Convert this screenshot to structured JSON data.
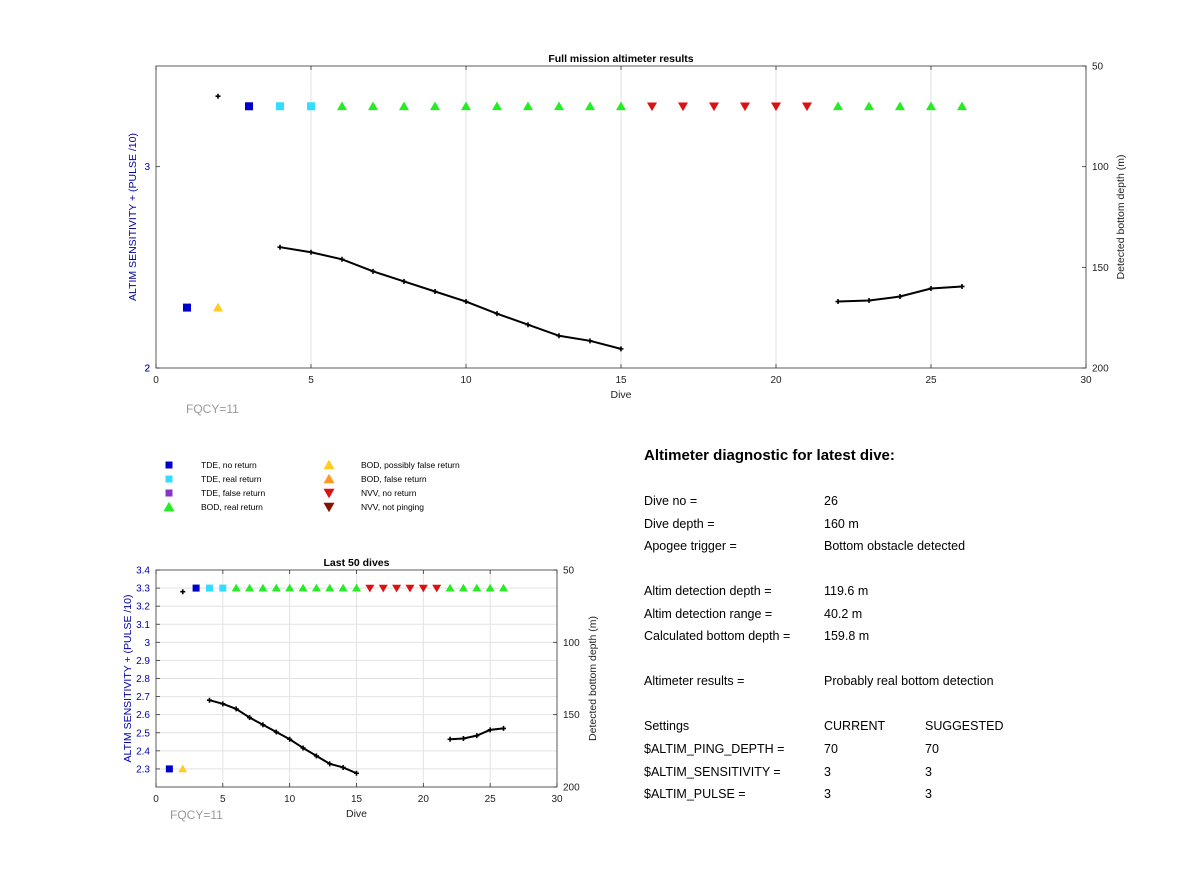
{
  "colors": {
    "tde_no": "#0000cc",
    "tde_real": "#33ddff",
    "tde_false": "#8833cc",
    "bod_real": "#22ee22",
    "bod_possible": "#ffcc22",
    "bod_false": "#ff9922",
    "nvv_no": "#dd1111",
    "nvv_notping": "#881100",
    "depth_line": "#000000",
    "left_axis": "#0000aa",
    "fqcy": "#999999"
  },
  "legend": [
    {
      "label": "TDE, no return",
      "marker": "square",
      "color": "#0000cc"
    },
    {
      "label": "TDE, real return",
      "marker": "square",
      "color": "#33ddff"
    },
    {
      "label": "TDE, false return",
      "marker": "square",
      "color": "#8833cc"
    },
    {
      "label": "BOD, real return",
      "marker": "triangle-up",
      "color": "#22ee22"
    },
    {
      "label": "BOD, possibly false return",
      "marker": "triangle-up",
      "color": "#ffcc22"
    },
    {
      "label": "BOD, false return",
      "marker": "triangle-up",
      "color": "#ff9922"
    },
    {
      "label": "NVV, no return",
      "marker": "triangle-down",
      "color": "#dd1111"
    },
    {
      "label": "NVV, not pinging",
      "marker": "triangle-down",
      "color": "#881100"
    }
  ],
  "chart_data": [
    {
      "type": "scatter",
      "title": "Full mission altimeter results",
      "xlabel": "Dive",
      "ylabel": "ALTIM SENSITIVITY + (PULSE /10)",
      "y2label": "Detected bottom depth (m)",
      "xlim": [
        0,
        30
      ],
      "ylim": [
        2,
        3.5
      ],
      "y2lim": [
        50,
        200
      ],
      "y2_reversed": true,
      "xticks": [
        0,
        5,
        10,
        15,
        20,
        25,
        30
      ],
      "yticks": [
        2,
        3
      ],
      "y2ticks": [
        50,
        100,
        150,
        200
      ],
      "grid_x": true,
      "grid_y": false,
      "annotation": "FQCY=11",
      "series": [
        {
          "marker": "square",
          "color": "#0000cc",
          "points": [
            [
              1,
              2.3
            ],
            [
              3,
              3.3
            ]
          ]
        },
        {
          "marker": "square",
          "color": "#33ddff",
          "points": [
            [
              4,
              3.3
            ],
            [
              5,
              3.3
            ]
          ]
        },
        {
          "marker": "triangle-up",
          "color": "#ffcc22",
          "points": [
            [
              2,
              2.3
            ]
          ]
        },
        {
          "marker": "triangle-up",
          "color": "#22ee22",
          "points": [
            [
              6,
              3.3
            ],
            [
              7,
              3.3
            ],
            [
              8,
              3.3
            ],
            [
              9,
              3.3
            ],
            [
              10,
              3.3
            ],
            [
              11,
              3.3
            ],
            [
              12,
              3.3
            ],
            [
              13,
              3.3
            ],
            [
              14,
              3.3
            ],
            [
              15,
              3.3
            ],
            [
              22,
              3.3
            ],
            [
              23,
              3.3
            ],
            [
              24,
              3.3
            ],
            [
              25,
              3.3
            ],
            [
              26,
              3.3
            ]
          ]
        },
        {
          "marker": "triangle-down",
          "color": "#dd1111",
          "points": [
            [
              16,
              3.3
            ],
            [
              17,
              3.3
            ],
            [
              18,
              3.3
            ],
            [
              19,
              3.3
            ],
            [
              20,
              3.3
            ],
            [
              21,
              3.3
            ]
          ]
        }
      ],
      "depth_series": [
        {
          "points": [
            [
              2,
              65
            ]
          ]
        },
        {
          "points": [
            [
              4,
              140
            ],
            [
              5,
              142.5
            ],
            [
              6,
              146
            ],
            [
              7,
              152
            ],
            [
              8,
              157
            ],
            [
              9,
              162
            ],
            [
              10,
              167
            ],
            [
              11,
              173
            ],
            [
              12,
              178.5
            ],
            [
              13,
              184
            ],
            [
              14,
              186.5
            ],
            [
              15,
              190.5
            ]
          ]
        },
        {
          "points": [
            [
              22,
              167
            ],
            [
              23,
              166.5
            ],
            [
              24,
              164.5
            ],
            [
              25,
              160.5
            ],
            [
              26,
              159.5
            ]
          ]
        }
      ]
    },
    {
      "type": "scatter",
      "title": "Last 50 dives",
      "xlabel": "Dive",
      "ylabel": "ALTIM SENSITIVITY + (PULSE /10)",
      "y2label": "Detected bottom depth (m)",
      "xlim": [
        0,
        30
      ],
      "ylim": [
        2.2,
        3.4
      ],
      "y2lim": [
        50,
        200
      ],
      "y2_reversed": true,
      "xticks": [
        0,
        5,
        10,
        15,
        20,
        25,
        30
      ],
      "yticks": [
        2.3,
        2.4,
        2.5,
        2.6,
        2.7,
        2.8,
        2.9,
        3,
        3.1,
        3.2,
        3.3,
        3.4
      ],
      "y2ticks": [
        50,
        100,
        150,
        200
      ],
      "grid_x": true,
      "grid_y": true,
      "annotation": "FQCY=11",
      "series": [
        {
          "marker": "square",
          "color": "#0000cc",
          "points": [
            [
              1,
              2.3
            ],
            [
              3,
              3.3
            ]
          ]
        },
        {
          "marker": "square",
          "color": "#33ddff",
          "points": [
            [
              4,
              3.3
            ],
            [
              5,
              3.3
            ]
          ]
        },
        {
          "marker": "triangle-up",
          "color": "#ffcc22",
          "points": [
            [
              2,
              2.3
            ]
          ]
        },
        {
          "marker": "triangle-up",
          "color": "#22ee22",
          "points": [
            [
              6,
              3.3
            ],
            [
              7,
              3.3
            ],
            [
              8,
              3.3
            ],
            [
              9,
              3.3
            ],
            [
              10,
              3.3
            ],
            [
              11,
              3.3
            ],
            [
              12,
              3.3
            ],
            [
              13,
              3.3
            ],
            [
              14,
              3.3
            ],
            [
              15,
              3.3
            ],
            [
              22,
              3.3
            ],
            [
              23,
              3.3
            ],
            [
              24,
              3.3
            ],
            [
              25,
              3.3
            ],
            [
              26,
              3.3
            ]
          ]
        },
        {
          "marker": "triangle-down",
          "color": "#dd1111",
          "points": [
            [
              16,
              3.3
            ],
            [
              17,
              3.3
            ],
            [
              18,
              3.3
            ],
            [
              19,
              3.3
            ],
            [
              20,
              3.3
            ],
            [
              21,
              3.3
            ]
          ]
        }
      ],
      "depth_series": [
        {
          "points": [
            [
              2,
              65
            ]
          ]
        },
        {
          "points": [
            [
              4,
              140
            ],
            [
              5,
              142.5
            ],
            [
              6,
              146
            ],
            [
              7,
              152
            ],
            [
              8,
              157
            ],
            [
              9,
              162
            ],
            [
              10,
              167
            ],
            [
              11,
              173
            ],
            [
              12,
              178.5
            ],
            [
              13,
              184
            ],
            [
              14,
              186.5
            ],
            [
              15,
              190.5
            ]
          ]
        },
        {
          "points": [
            [
              22,
              167
            ],
            [
              23,
              166.5
            ],
            [
              24,
              164.5
            ],
            [
              25,
              160.5
            ],
            [
              26,
              159.5
            ]
          ]
        }
      ]
    }
  ],
  "diagnostic": {
    "heading": "Altimeter diagnostic for latest dive:",
    "dive_no_label": "Dive no =",
    "dive_no_value": "26",
    "dive_depth_label": "Dive depth =",
    "dive_depth_value": "160 m",
    "apogee_label": "Apogee trigger =",
    "apogee_value": "Bottom obstacle detected",
    "altim_det_depth_label": "Altim detection depth =",
    "altim_det_depth_value": "119.6 m",
    "altim_det_range_label": "Altim detection range =",
    "altim_det_range_value": "40.2 m",
    "calc_bottom_label": "Calculated bottom depth =",
    "calc_bottom_value": "159.8 m",
    "results_label": "Altimeter results =",
    "results_value": "Probably real bottom detection",
    "settings_label": "Settings",
    "current_label": "CURRENT",
    "suggested_label": "SUGGESTED",
    "ping_depth_label": "$ALTIM_PING_DEPTH =",
    "ping_depth_current": "70",
    "ping_depth_suggested": "70",
    "sensitivity_label": "$ALTIM_SENSITIVITY =",
    "sensitivity_current": "3",
    "sensitivity_suggested": "3",
    "pulse_label": "$ALTIM_PULSE =",
    "pulse_current": "3",
    "pulse_suggested": "3"
  }
}
